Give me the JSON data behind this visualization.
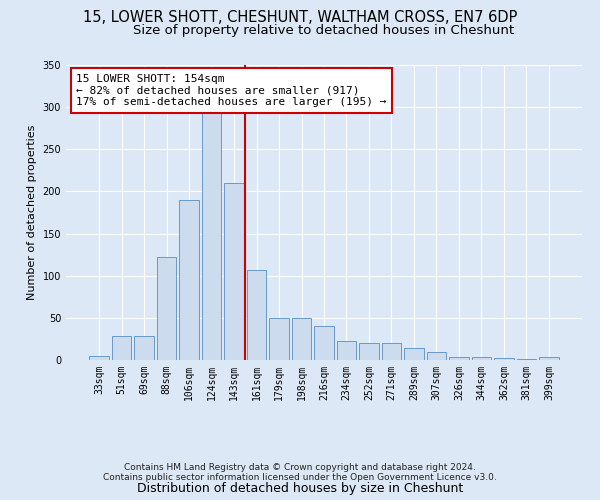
{
  "title1": "15, LOWER SHOTT, CHESHUNT, WALTHAM CROSS, EN7 6DP",
  "title2": "Size of property relative to detached houses in Cheshunt",
  "xlabel": "Distribution of detached houses by size in Cheshunt",
  "ylabel": "Number of detached properties",
  "categories": [
    "33sqm",
    "51sqm",
    "69sqm",
    "88sqm",
    "106sqm",
    "124sqm",
    "143sqm",
    "161sqm",
    "179sqm",
    "198sqm",
    "216sqm",
    "234sqm",
    "252sqm",
    "271sqm",
    "289sqm",
    "307sqm",
    "326sqm",
    "344sqm",
    "362sqm",
    "381sqm",
    "399sqm"
  ],
  "values": [
    5,
    28,
    28,
    122,
    190,
    295,
    210,
    107,
    50,
    50,
    40,
    22,
    20,
    20,
    14,
    10,
    4,
    4,
    2,
    1,
    4
  ],
  "bar_color": "#ccdcee",
  "bar_edge_color": "#6699cc",
  "vline_color": "#cc0000",
  "annotation_line1": "15 LOWER SHOTT: 154sqm",
  "annotation_line2": "← 82% of detached houses are smaller (917)",
  "annotation_line3": "17% of semi-detached houses are larger (195) →",
  "annotation_box_color": "#cc0000",
  "ylim": [
    0,
    350
  ],
  "yticks": [
    0,
    50,
    100,
    150,
    200,
    250,
    300,
    350
  ],
  "footer1": "Contains HM Land Registry data © Crown copyright and database right 2024.",
  "footer2": "Contains public sector information licensed under the Open Government Licence v3.0.",
  "bg_color": "#dce8f5",
  "fig_bg_color": "#dce8f5",
  "grid_color": "#ffffff",
  "title1_fontsize": 10.5,
  "title2_fontsize": 9.5,
  "xlabel_fontsize": 9,
  "ylabel_fontsize": 8,
  "tick_fontsize": 7,
  "annotation_fontsize": 8,
  "footer_fontsize": 6.5,
  "vline_bar_index": 7
}
